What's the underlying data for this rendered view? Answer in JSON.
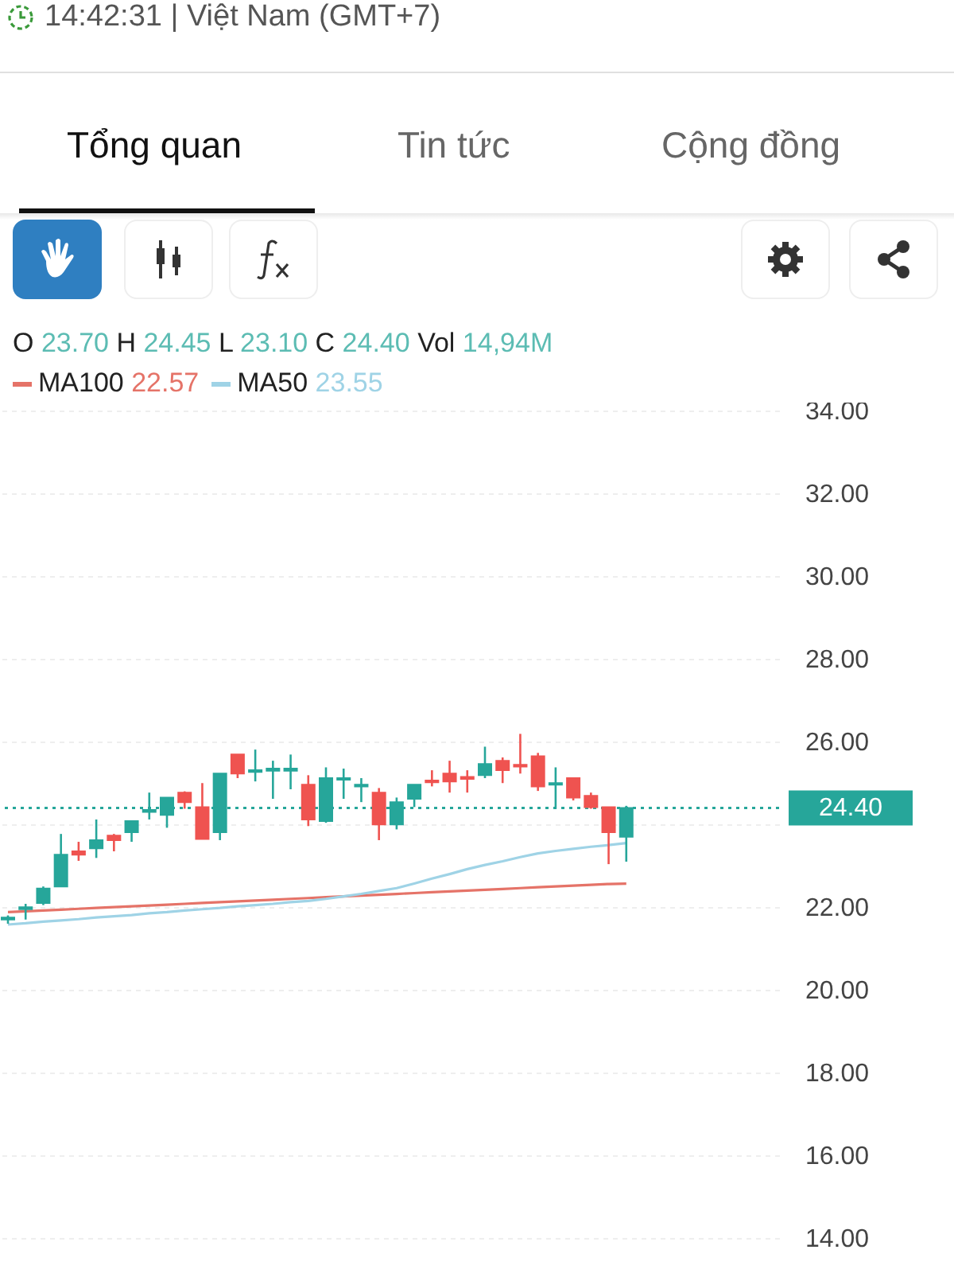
{
  "chart_data": {
    "type": "candlestick",
    "categories": [
      null,
      null,
      null,
      null,
      null,
      null,
      null,
      null,
      null,
      null,
      null,
      null,
      null,
      null,
      null,
      null,
      null,
      null,
      null,
      null,
      null,
      null,
      null,
      null,
      null,
      null,
      null,
      null,
      null,
      null,
      null,
      null,
      null,
      null,
      null,
      null
    ],
    "ohlc": [
      [
        21.7,
        21.8,
        21.6,
        21.75
      ],
      [
        21.95,
        22.08,
        21.7,
        22.0
      ],
      [
        22.1,
        22.5,
        22.05,
        22.45
      ],
      [
        22.5,
        23.77,
        22.5,
        23.27
      ],
      [
        23.35,
        23.58,
        23.12,
        23.27
      ],
      [
        23.42,
        24.12,
        23.19,
        23.62
      ],
      [
        23.73,
        23.77,
        23.35,
        23.62
      ],
      [
        23.81,
        24.08,
        23.58,
        24.08
      ],
      [
        24.3,
        24.77,
        24.12,
        24.35
      ],
      [
        24.23,
        24.65,
        23.92,
        24.65
      ],
      [
        24.77,
        24.8,
        24.38,
        24.54
      ],
      [
        24.42,
        25.0,
        23.65,
        23.65
      ],
      [
        23.81,
        25.23,
        23.62,
        25.23
      ],
      [
        25.69,
        25.69,
        25.12,
        25.23
      ],
      [
        25.27,
        25.81,
        25.04,
        25.31
      ],
      [
        25.3,
        25.54,
        24.62,
        25.35
      ],
      [
        25.3,
        25.69,
        24.85,
        25.35
      ],
      [
        24.96,
        25.19,
        23.96,
        24.12
      ],
      [
        24.08,
        25.38,
        24.04,
        25.12
      ],
      [
        25.08,
        25.35,
        24.62,
        25.12
      ],
      [
        24.92,
        25.12,
        24.54,
        24.96
      ],
      [
        24.77,
        24.88,
        23.62,
        24.0
      ],
      [
        24.0,
        24.65,
        23.88,
        24.54
      ],
      [
        24.62,
        24.96,
        24.42,
        24.96
      ],
      [
        25.06,
        25.31,
        24.92,
        25.02
      ],
      [
        25.23,
        25.54,
        24.77,
        25.04
      ],
      [
        25.15,
        25.31,
        24.77,
        25.1
      ],
      [
        25.19,
        25.88,
        25.12,
        25.46
      ],
      [
        25.54,
        25.62,
        25.0,
        25.31
      ],
      [
        25.44,
        26.19,
        25.23,
        25.4
      ],
      [
        25.65,
        25.73,
        24.81,
        24.92
      ],
      [
        24.96,
        25.38,
        24.38,
        25.0
      ],
      [
        25.12,
        25.12,
        24.58,
        24.65
      ],
      [
        24.69,
        24.77,
        24.38,
        24.42
      ],
      [
        24.42,
        24.42,
        23.04,
        23.81
      ],
      [
        23.7,
        24.45,
        23.1,
        24.4
      ]
    ],
    "colors": [
      "#26a69a",
      "#26a69a",
      "#26a69a",
      "#26a69a",
      "#ef5350",
      "#26a69a",
      "#ef5350",
      "#26a69a",
      "#26a69a",
      "#26a69a",
      "#ef5350",
      "#ef5350",
      "#26a69a",
      "#ef5350",
      "#26a69a",
      "#26a69a",
      "#26a69a",
      "#ef5350",
      "#26a69a",
      "#26a69a",
      "#26a69a",
      "#ef5350",
      "#26a69a",
      "#26a69a",
      "#ef5350",
      "#ef5350",
      "#ef5350",
      "#26a69a",
      "#ef5350",
      "#ef5350",
      "#ef5350",
      "#26a69a",
      "#ef5350",
      "#ef5350",
      "#ef5350",
      "#26a69a"
    ],
    "series": [
      {
        "name": "MA100",
        "type": "line",
        "color": "#e57368",
        "values": [
          21.88,
          21.9,
          21.92,
          21.94,
          21.96,
          21.98,
          22.0,
          22.02,
          22.04,
          22.06,
          22.08,
          22.1,
          22.12,
          22.14,
          22.16,
          22.18,
          22.2,
          22.22,
          22.24,
          22.26,
          22.28,
          22.3,
          22.32,
          22.34,
          22.36,
          22.38,
          22.4,
          22.42,
          22.44,
          22.46,
          22.48,
          22.5,
          22.52,
          22.54,
          22.56,
          22.57
        ]
      },
      {
        "name": "MA50",
        "type": "line",
        "color": "#9fd3e6",
        "values": [
          21.58,
          21.61,
          21.65,
          21.68,
          21.71,
          21.75,
          21.78,
          21.81,
          21.85,
          21.88,
          21.92,
          21.95,
          21.98,
          22.02,
          22.05,
          22.08,
          22.12,
          22.15,
          22.2,
          22.26,
          22.32,
          22.39,
          22.46,
          22.57,
          22.69,
          22.8,
          22.92,
          23.02,
          23.11,
          23.21,
          23.3,
          23.36,
          23.41,
          23.46,
          23.5,
          23.55
        ]
      }
    ],
    "ylim": [
      13,
      34.2
    ],
    "yticks": [
      {
        "value": 14,
        "label": "14.00"
      },
      {
        "value": 16,
        "label": "16.00"
      },
      {
        "value": 18,
        "label": "18.00"
      },
      {
        "value": 20,
        "label": "20.00"
      },
      {
        "value": 22,
        "label": "22.00"
      },
      {
        "value": 24,
        "label": null
      },
      {
        "value": 26,
        "label": "26.00"
      },
      {
        "value": 28,
        "label": "28.00"
      },
      {
        "value": 30,
        "label": "30.00"
      },
      {
        "value": 32,
        "label": "32.00"
      },
      {
        "value": 34,
        "label": "34.00"
      }
    ],
    "grid": "y",
    "tick_labels": "y",
    "legend": "top left",
    "ref_lines": [
      {
        "axis": "y",
        "value": 24.4,
        "label": "24.40",
        "color": "#26a69a",
        "line_style": "dotted"
      }
    ],
    "annotations": [
      "14:42:31 | Việt Nam (GMT+7)",
      "Tổng quan",
      "Tin tức",
      "Cộng đồng",
      "O 23.70 H 24.45 L 23.10 C 24.40 Vol 14,94M",
      "22.57",
      "23.55"
    ]
  }
}
